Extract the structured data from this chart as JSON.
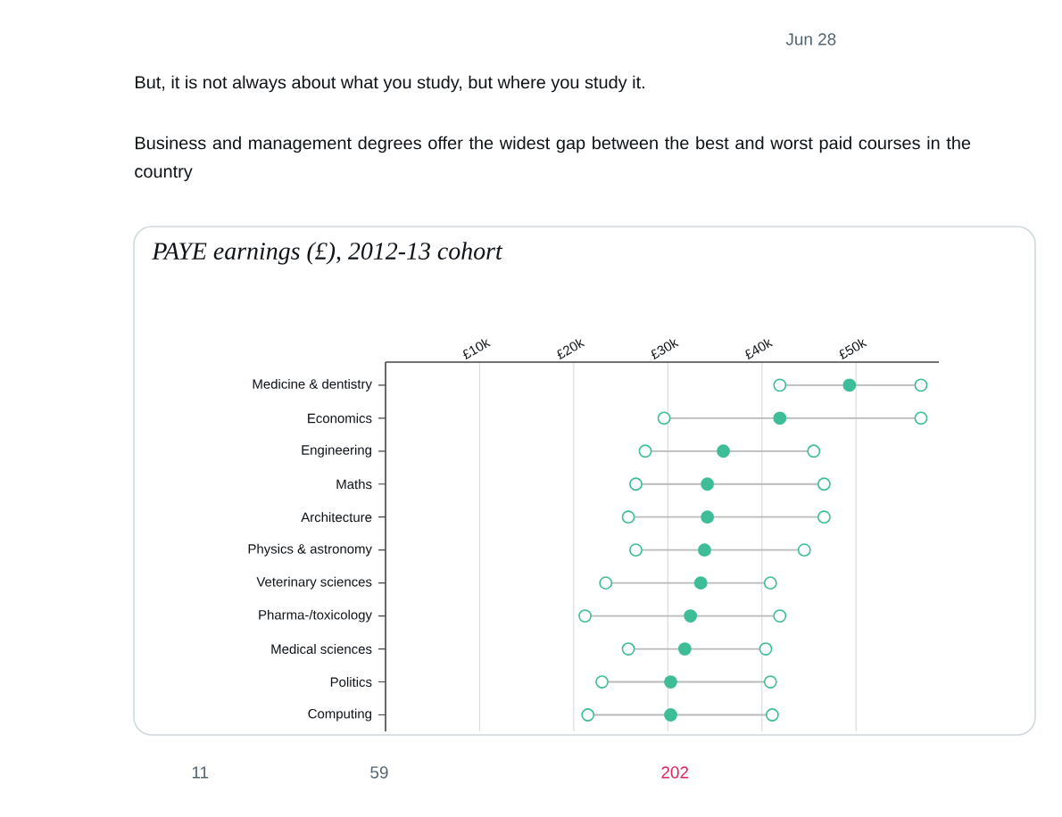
{
  "chart_data": {
    "type": "scatter",
    "orientation": "horizontal",
    "title": "PAYE earnings (£), 2012-13 cohort",
    "categories": [
      "Medicine & dentistry",
      "Economics",
      "Engineering",
      "Maths",
      "Architecture",
      "Physics & astronomy",
      "Veterinary sciences",
      "Pharma-/toxicology",
      "Medical sciences",
      "Politics",
      "Computing"
    ],
    "series": [
      {
        "color": "#3dbd98",
        "values": [
          41.9,
          29.6,
          27.6,
          26.6,
          25.8,
          26.6,
          23.4,
          21.2,
          25.8,
          23.0,
          21.5
        ]
      },
      {
        "color": "#3dbd98",
        "values": [
          49.3,
          41.9,
          35.9,
          34.2,
          34.2,
          33.9,
          33.5,
          32.4,
          31.8,
          30.3,
          30.3
        ]
      },
      {
        "color": "#3dbd98",
        "values": [
          56.9,
          56.9,
          45.5,
          46.6,
          46.6,
          44.5,
          40.9,
          41.9,
          40.4,
          40.9,
          41.1
        ]
      }
    ],
    "xlim": [
      0,
      58.8
    ],
    "xticks": [
      {
        "value": 10,
        "label": "£10k"
      },
      {
        "value": 20,
        "label": "£20k"
      },
      {
        "value": 30,
        "label": "£30k"
      },
      {
        "value": 40,
        "label": "£40k"
      },
      {
        "value": 50,
        "label": "£50k"
      }
    ],
    "grid": "x",
    "marker": "circle",
    "annotations": [
      "But, it is not always about what you study, but where you study it.",
      "Business and management degrees offer the widest gap between the best and worst paid courses in the country",
      "Jun 28",
      "11",
      "59",
      "202"
    ]
  }
}
